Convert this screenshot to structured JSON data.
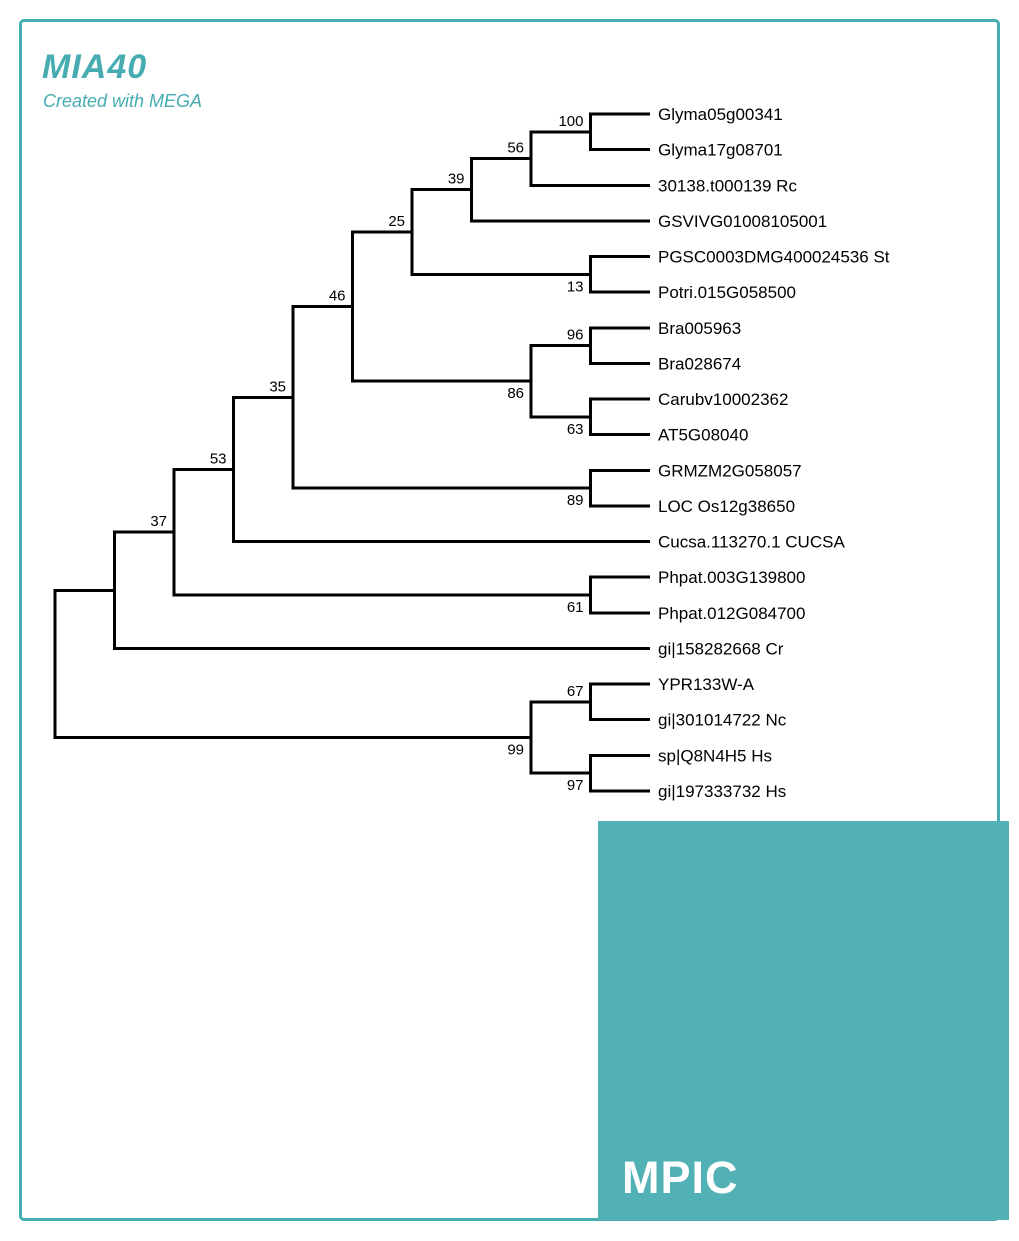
{
  "page": {
    "title": "MIA40",
    "subtitle": "Created with MEGA",
    "logo_text": "MPIC",
    "accent_color": "#46acb1",
    "square_color": "#52b1b5",
    "tree_line_color": "#000000",
    "text_color": "#000000"
  },
  "chart_data": {
    "type": "phylogenetic-tree-cladogram",
    "title": "MIA40",
    "annotation": "Created with MEGA",
    "orientation": "left-to-right, topology only (no branch lengths)",
    "node_value_meaning": "bootstrap support",
    "tips_top_to_bottom": [
      "Glyma05g00341",
      "Glyma17g08701",
      "30138.t000139 Rc",
      "GSVIVG01008105001",
      "PGSC0003DMG400024536 St",
      "Potri.015G058500",
      "Bra005963",
      "Bra028674",
      "Carubv10002362",
      "AT5G08040",
      "GRMZM2G058057",
      "LOC Os12g38650",
      "Cucsa.113270.1 CUCSA",
      "Phpat.003G139800",
      "Phpat.012G084700",
      "gi|158282668 Cr",
      "YPR133W-A",
      "gi|301014722 Nc",
      "sp|Q8N4H5 Hs",
      "gi|197333732 Hs"
    ],
    "tree": {
      "children": [
        {
          "children": [
            {
              "bootstrap": 37,
              "children": [
                {
                  "bootstrap": 53,
                  "children": [
                    {
                      "bootstrap": 35,
                      "children": [
                        {
                          "bootstrap": 46,
                          "children": [
                            {
                              "bootstrap": 25,
                              "children": [
                                {
                                  "bootstrap": 39,
                                  "children": [
                                    {
                                      "bootstrap": 56,
                                      "children": [
                                        {
                                          "bootstrap": 100,
                                          "children": [
                                            {
                                              "label": "Glyma05g00341"
                                            },
                                            {
                                              "label": "Glyma17g08701"
                                            }
                                          ]
                                        },
                                        {
                                          "label": "30138.t000139 Rc"
                                        }
                                      ]
                                    },
                                    {
                                      "label": "GSVIVG01008105001"
                                    }
                                  ]
                                },
                                {
                                  "bootstrap": 13,
                                  "children": [
                                    {
                                      "label": "PGSC0003DMG400024536 St"
                                    },
                                    {
                                      "label": "Potri.015G058500"
                                    }
                                  ]
                                }
                              ]
                            },
                            {
                              "bootstrap": 86,
                              "children": [
                                {
                                  "bootstrap": 96,
                                  "children": [
                                    {
                                      "label": "Bra005963"
                                    },
                                    {
                                      "label": "Bra028674"
                                    }
                                  ]
                                },
                                {
                                  "bootstrap": 63,
                                  "children": [
                                    {
                                      "label": "Carubv10002362"
                                    },
                                    {
                                      "label": "AT5G08040"
                                    }
                                  ]
                                }
                              ]
                            }
                          ]
                        },
                        {
                          "bootstrap": 89,
                          "children": [
                            {
                              "label": "GRMZM2G058057"
                            },
                            {
                              "label": "LOC Os12g38650"
                            }
                          ]
                        }
                      ]
                    },
                    {
                      "label": "Cucsa.113270.1 CUCSA"
                    }
                  ]
                },
                {
                  "bootstrap": 61,
                  "children": [
                    {
                      "label": "Phpat.003G139800"
                    },
                    {
                      "label": "Phpat.012G084700"
                    }
                  ]
                }
              ]
            },
            {
              "label": "gi|158282668 Cr"
            }
          ]
        },
        {
          "bootstrap": 99,
          "children": [
            {
              "bootstrap": 67,
              "children": [
                {
                  "label": "YPR133W-A"
                },
                {
                  "label": "gi|301014722 Nc"
                }
              ]
            },
            {
              "bootstrap": 97,
              "children": [
                {
                  "label": "sp|Q8N4H5 Hs"
                },
                {
                  "label": "gi|197333732 Hs"
                }
              ]
            }
          ]
        }
      ]
    }
  }
}
